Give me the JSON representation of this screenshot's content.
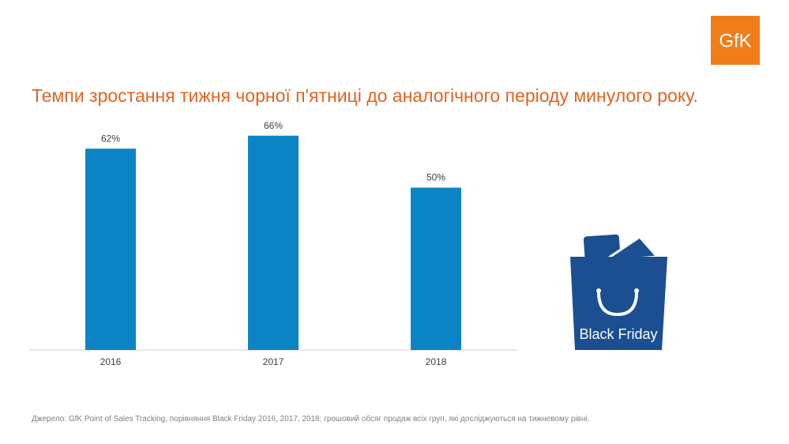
{
  "chart_data": {
    "type": "bar",
    "title": "Темпи зростання тижня чорної п'ятниці до аналогічного періоду минулого року.",
    "categories": [
      "2016",
      "2017",
      "2018"
    ],
    "values": [
      62,
      66,
      50
    ],
    "value_labels": [
      "62%",
      "66%",
      "50%"
    ],
    "color": "#0b84c6",
    "ylim": [
      0,
      100
    ],
    "grid": false,
    "logo": "GfK",
    "badge": "Black Friday",
    "source": "Джерело: GfK Point of Sales Tracking, порівняння Black Friday 2016, 2017, 2018; грошовий обсяг продаж всіх груп, які досліджуються на тижневому рівні."
  }
}
